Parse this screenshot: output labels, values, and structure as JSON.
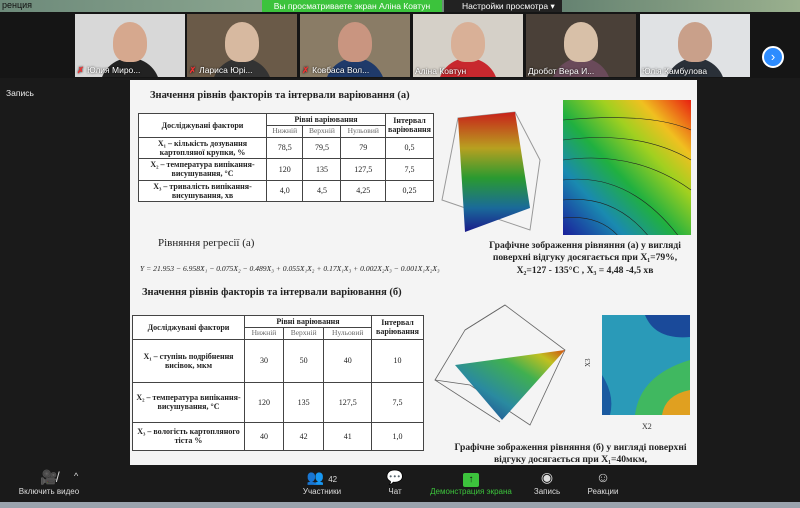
{
  "top": {
    "conference_label": "ренция",
    "viewing_banner": "Вы просматриваете экран Аліна Ковтун",
    "view_settings": "Настройки просмотра"
  },
  "participants": [
    {
      "name": "Юлия Миро...",
      "muted": true
    },
    {
      "name": "Лариса Юрі...",
      "muted": true
    },
    {
      "name": "Ковбаса Вол...",
      "muted": true
    },
    {
      "name": "Аліна Ковтун",
      "muted": false
    },
    {
      "name": "Дробот Вера И...",
      "muted": false
    },
    {
      "name": "Юлія Камбулова",
      "muted": false
    }
  ],
  "recording_label": "Запись",
  "slide": {
    "title_a": "Значення рівнів факторів та інтервали варіювання (а)",
    "table_a": {
      "h_factors": "Досліджувані фактори",
      "h_levels": "Рівні варіювання",
      "h_interval": "Інтервал варіювання",
      "h_low": "Нижній",
      "h_high": "Верхній",
      "h_zero": "Нульовий",
      "rows": [
        {
          "factor": "X₁ – кількість дозування картопляної крупки, %",
          "low": "78,5",
          "high": "79,5",
          "zero": "79",
          "interval": "0,5"
        },
        {
          "factor": "X₂ – температура випікання-висушування, °С",
          "low": "120",
          "high": "135",
          "zero": "127,5",
          "interval": "7,5"
        },
        {
          "factor": "X₃ – тривалість випікання-висушування, хв",
          "low": "4,0",
          "high": "4,5",
          "zero": "4,25",
          "interval": "0,25"
        }
      ]
    },
    "regression_label": "Рівняння регресії (а)",
    "equation": "Y = 21.953 − 6.958X₁ − 0.075X₂ − 0.489X₃ + 0.055X₁X₂ + 0.17X₁X₃ + 0.002X₂X₃ − 0.001X₁X₂X₃",
    "caption_a": "Графічне зображення рівняння (а) у вигляді поверхні відгуку досягається при X₁=79%, X₂=127 - 135°С , X₃ = 4,48 -4,5 хв",
    "title_b": "Значення рівнів факторів та інтервали варіювання (б)",
    "table_b": {
      "h_factors": "Досліджувані фактори",
      "h_levels": "Рівні варіювання",
      "h_interval": "Інтервал варіювання",
      "h_low": "Нижній",
      "h_high": "Верхній",
      "h_zero": "Нульовий",
      "rows": [
        {
          "factor": "X₁ – ступінь подрібнення висівок, мкм",
          "low": "30",
          "high": "50",
          "zero": "40",
          "interval": "10"
        },
        {
          "factor": "X₂ – температура випікання-висушування, °С",
          "low": "120",
          "high": "135",
          "zero": "127,5",
          "interval": "7,5"
        },
        {
          "factor": "X₃ – вологість картопляного тіста %",
          "low": "40",
          "high": "42",
          "zero": "41",
          "interval": "1,0"
        }
      ]
    },
    "caption_b": "Графічне зображення рівняння (б) у вигляді поверхні відгуку досягається при X₁=40мкм,",
    "contour_b_xlabel": "X2",
    "contour_b_ylabel": "X3"
  },
  "toolbar": {
    "video": "Включить видео",
    "participants": "Участники",
    "participants_count": "42",
    "chat": "Чат",
    "share": "Демонстрация экрана",
    "record": "Запись",
    "reactions": "Реакции"
  },
  "colors": {
    "share_green": "#3cc33c",
    "accent_blue": "#2d8cff",
    "mute_red": "#e33333"
  }
}
